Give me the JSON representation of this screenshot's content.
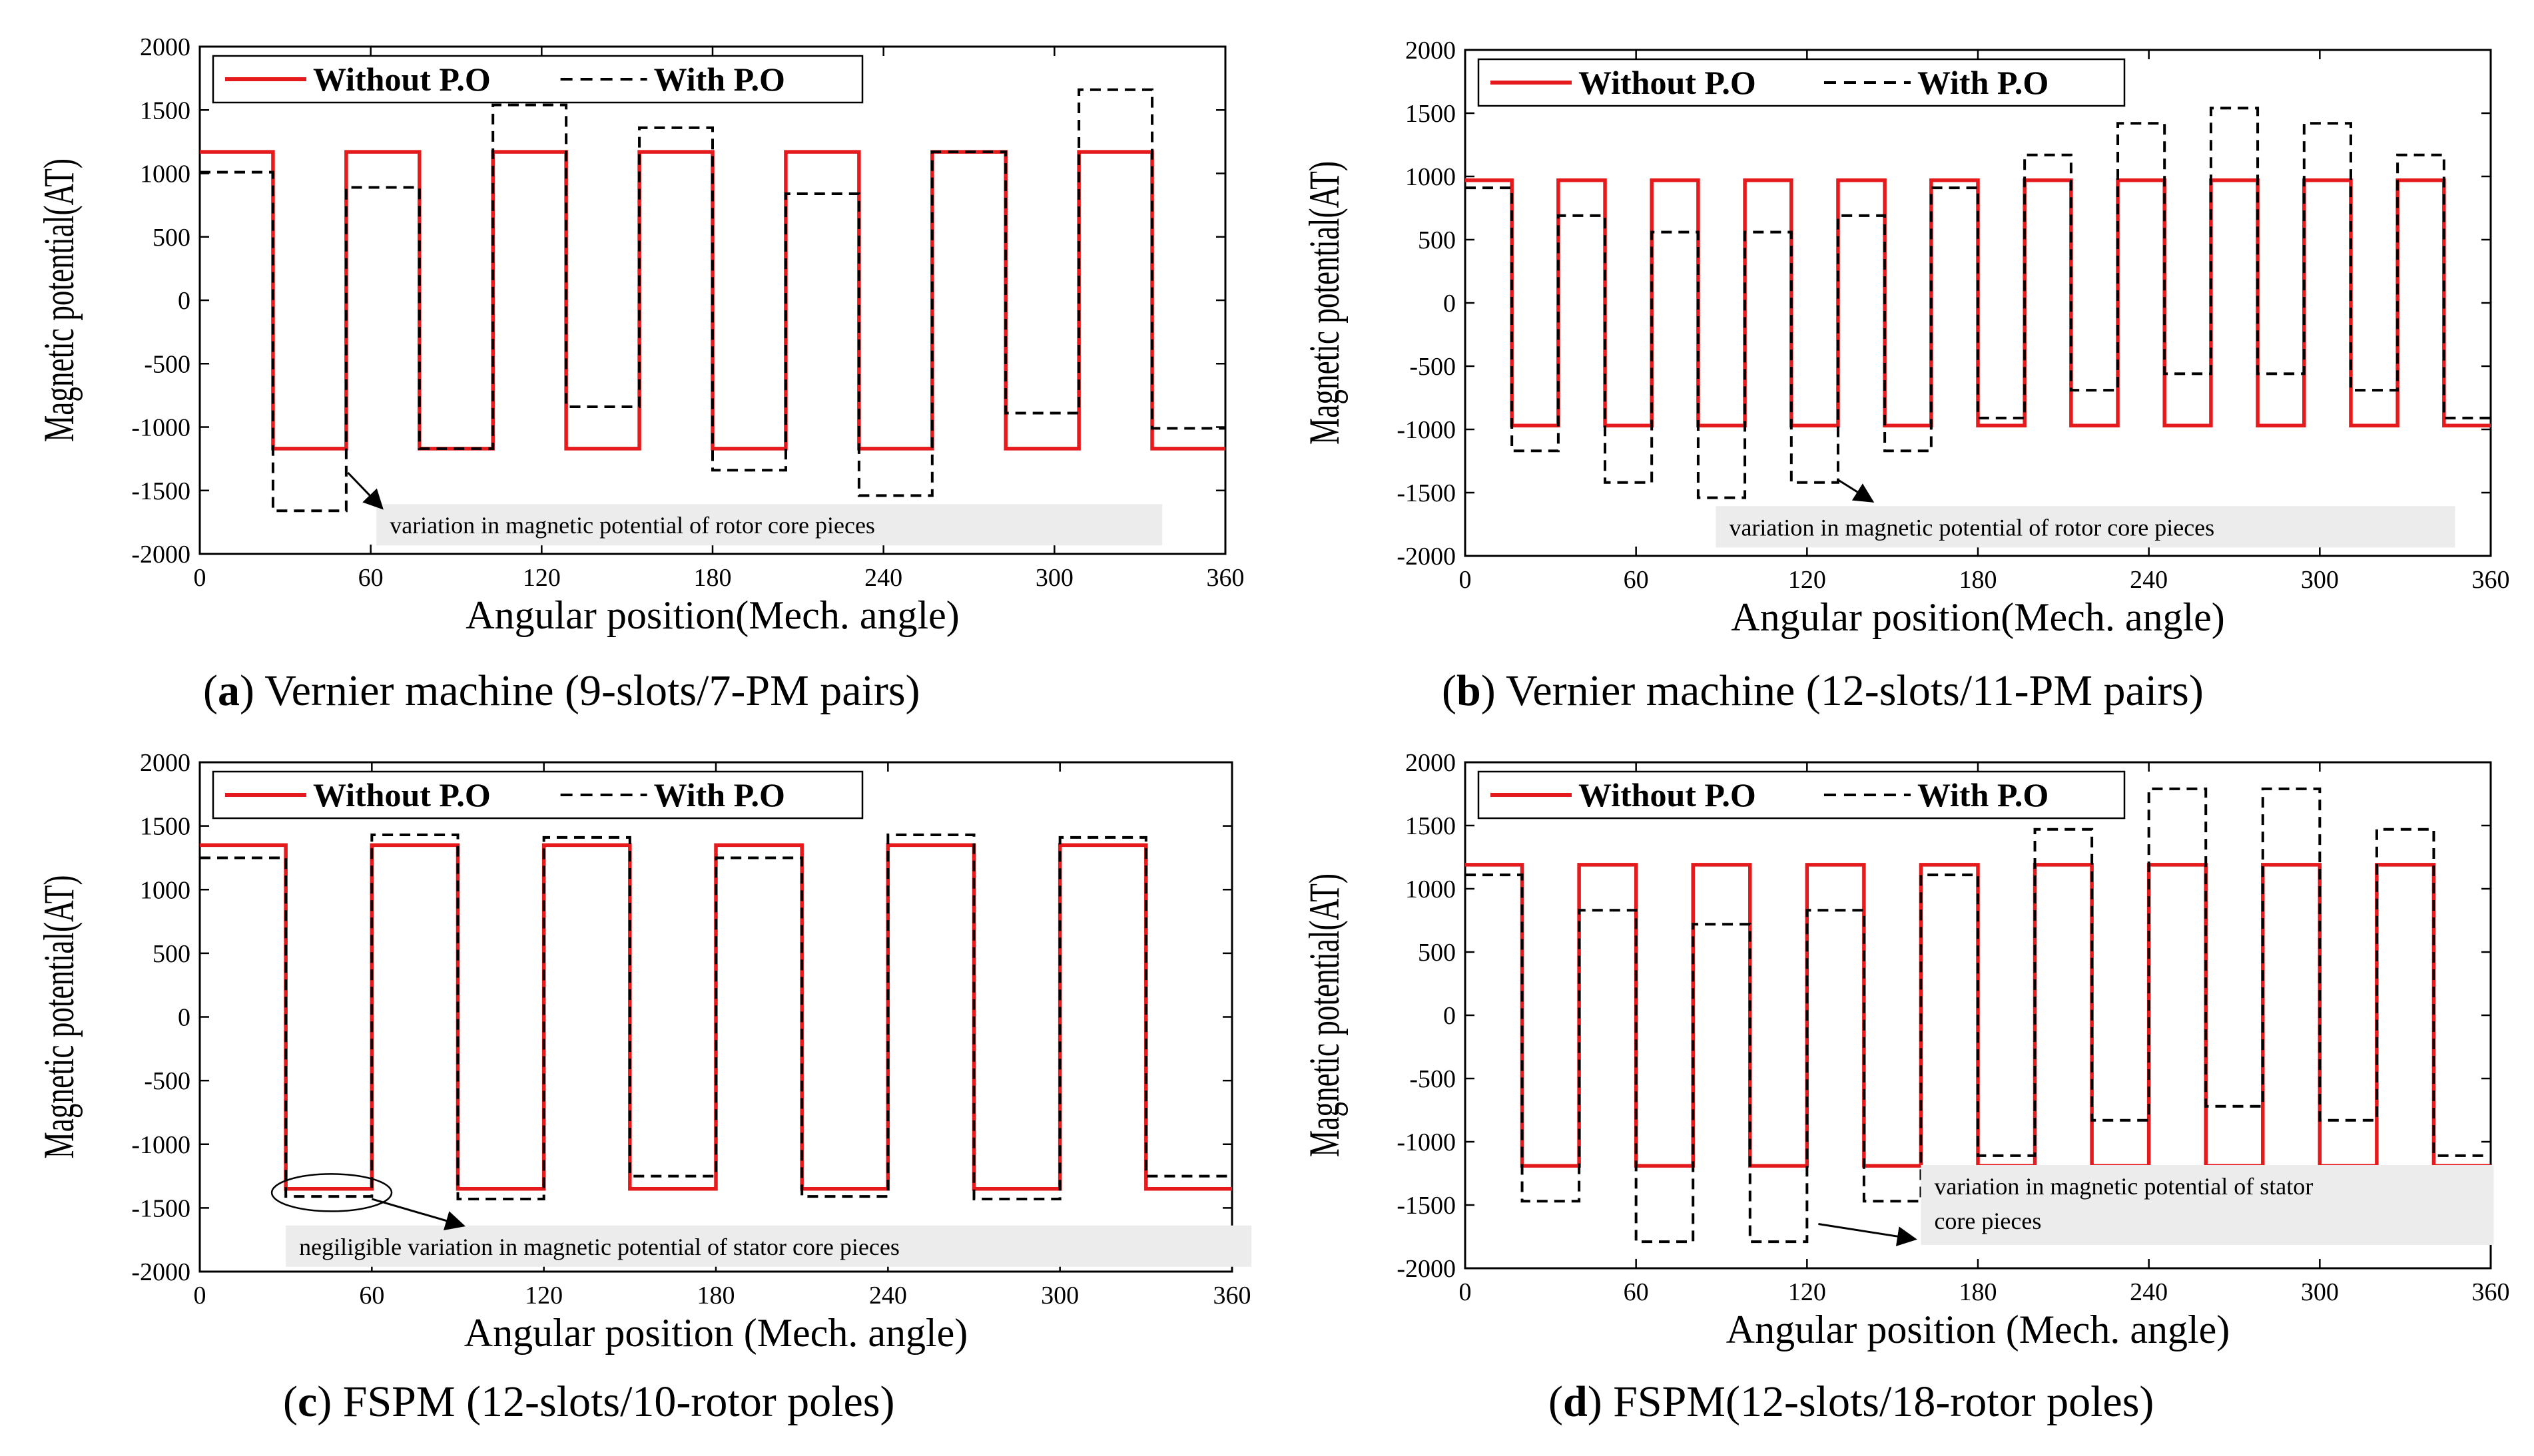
{
  "colors": {
    "without": "#e41a1c",
    "with": "#000000",
    "annotation_bg": "#ececec"
  },
  "chart_data": [
    {
      "id": "a",
      "type": "line",
      "caption_label": "a",
      "caption_text": " Vernier machine (9-slots/7-PM pairs)",
      "xlabel": "Angular position(Mech. angle)",
      "ylabel": "Magnetic potential(AT)",
      "xlim": [
        0,
        360
      ],
      "ylim": [
        -2000,
        2000
      ],
      "xticks": [
        0,
        60,
        120,
        180,
        240,
        300,
        360
      ],
      "yticks": [
        -2000,
        -1500,
        -1000,
        -500,
        0,
        500,
        1000,
        1500,
        2000
      ],
      "legend": {
        "entries": [
          "Without P.O",
          "With P.O"
        ],
        "placement": "top-left"
      },
      "annotation": {
        "lines": [
          "variation in magnetic potential of rotor core pieces"
        ],
        "x": 62,
        "y": -1770,
        "arrow_from": [
          52,
          -1360
        ],
        "arrow_to": [
          64,
          -1640
        ]
      },
      "series": [
        {
          "name": "Without P.O",
          "style": "solid",
          "edges": [
            0,
            25.7,
            51.4,
            77.1,
            102.9,
            128.6,
            154.3,
            180,
            205.7,
            231.4,
            257.1,
            282.9,
            308.6,
            334.3,
            360
          ],
          "values": [
            1170,
            -1170,
            1170,
            -1170,
            1170,
            -1170,
            1170,
            -1170,
            1170,
            -1170,
            1170,
            -1170,
            1170,
            -1170
          ]
        },
        {
          "name": "With P.O",
          "style": "dashed",
          "edges": [
            0,
            25.7,
            51.4,
            77.1,
            102.9,
            128.6,
            154.3,
            180,
            205.7,
            231.4,
            257.1,
            282.9,
            308.6,
            334.3,
            360
          ],
          "values": [
            1010,
            -1660,
            890,
            -1170,
            1540,
            -840,
            1360,
            -1340,
            840,
            -1540,
            1170,
            -890,
            1660,
            -1010
          ]
        }
      ]
    },
    {
      "id": "b",
      "type": "line",
      "caption_label": "b",
      "caption_text": " Vernier machine (12-slots/11-PM pairs)",
      "xlabel": "Angular position(Mech. angle)",
      "ylabel": "Magnetic potential(AT)",
      "xlim": [
        0,
        360
      ],
      "ylim": [
        -2000,
        2000
      ],
      "xticks": [
        0,
        60,
        120,
        180,
        240,
        300,
        360
      ],
      "yticks": [
        -2000,
        -1500,
        -1000,
        -500,
        0,
        500,
        1000,
        1500,
        2000
      ],
      "legend": {
        "entries": [
          "Without P.O",
          "With P.O"
        ],
        "placement": "top-left"
      },
      "annotation": {
        "lines": [
          "variation in magnetic potential of rotor core pieces"
        ],
        "x": 88,
        "y": -1770,
        "arrow_from": [
          131,
          -1400
        ],
        "arrow_to": [
          143,
          -1570
        ]
      },
      "series": [
        {
          "name": "Without P.O",
          "style": "solid",
          "edges": [
            0,
            16.4,
            32.7,
            49.1,
            65.5,
            81.8,
            98.2,
            114.5,
            130.9,
            147.3,
            163.6,
            180,
            196.4,
            212.7,
            229.1,
            245.5,
            261.8,
            278.2,
            294.5,
            310.9,
            327.3,
            343.6,
            360
          ],
          "values": [
            970,
            -970,
            970,
            -970,
            970,
            -970,
            970,
            -970,
            970,
            -970,
            970,
            -970,
            970,
            -970,
            970,
            -970,
            970,
            -970,
            970,
            -970,
            970,
            -970
          ]
        },
        {
          "name": "With P.O",
          "style": "dashed",
          "edges": [
            0,
            16.4,
            32.7,
            49.1,
            65.5,
            81.8,
            98.2,
            114.5,
            130.9,
            147.3,
            163.6,
            180,
            196.4,
            212.7,
            229.1,
            245.5,
            261.8,
            278.2,
            294.5,
            310.9,
            327.3,
            343.6,
            360
          ],
          "values": [
            910,
            -1170,
            690,
            -1420,
            560,
            -1540,
            560,
            -1420,
            690,
            -1170,
            910,
            -910,
            1170,
            -690,
            1420,
            -560,
            1540,
            -560,
            1420,
            -690,
            1170,
            -910
          ]
        }
      ]
    },
    {
      "id": "c",
      "type": "line",
      "caption_label": "c",
      "caption_text": " FSPM (12-slots/10-rotor poles)",
      "xlabel": "Angular position (Mech. angle)",
      "ylabel": "Magnetic potential(AT)",
      "xlim": [
        0,
        360
      ],
      "ylim": [
        -2000,
        2000
      ],
      "xticks": [
        0,
        60,
        120,
        180,
        240,
        300,
        360
      ],
      "yticks": [
        -2000,
        -1500,
        -1000,
        -500,
        0,
        500,
        1000,
        1500,
        2000
      ],
      "legend": {
        "entries": [
          "Without P.O",
          "With P.O"
        ],
        "placement": "top-left"
      },
      "annotation": {
        "lines": [
          "negiligible variation in magnetic potential of stator core pieces"
        ],
        "x": 30,
        "y": -1800,
        "ellipse": [
          46,
          -1380
        ],
        "arrow_from": [
          60,
          -1430
        ],
        "arrow_to": [
          92,
          -1640
        ]
      },
      "series": [
        {
          "name": "Without P.O",
          "style": "solid",
          "edges": [
            0,
            30,
            60,
            90,
            120,
            150,
            180,
            210,
            240,
            270,
            300,
            330,
            360
          ],
          "values": [
            1350,
            -1350,
            1350,
            -1350,
            1350,
            -1350,
            1350,
            -1350,
            1350,
            -1350,
            1350,
            -1350
          ]
        },
        {
          "name": "With P.O",
          "style": "dashed",
          "edges": [
            0,
            30,
            60,
            90,
            120,
            150,
            180,
            210,
            240,
            270,
            300,
            330,
            360
          ],
          "values": [
            1250,
            -1410,
            1430,
            -1430,
            1410,
            -1250,
            1250,
            -1410,
            1430,
            -1430,
            1410,
            -1250
          ]
        }
      ]
    },
    {
      "id": "d",
      "type": "line",
      "caption_label": "d",
      "caption_text": " FSPM(12-slots/18-rotor poles)",
      "xlabel": "Angular position (Mech. angle)",
      "ylabel": "Magnetic potential(AT)",
      "xlim": [
        0,
        360
      ],
      "ylim": [
        -2000,
        2000
      ],
      "xticks": [
        0,
        60,
        120,
        180,
        240,
        300,
        360
      ],
      "yticks": [
        -2000,
        -1500,
        -1000,
        -500,
        0,
        500,
        1000,
        1500,
        2000
      ],
      "legend": {
        "entries": [
          "Without P.O",
          "With P.O"
        ],
        "placement": "top-left"
      },
      "annotation": {
        "lines": [
          "variation in magnetic potential of stator",
          "core pieces"
        ],
        "x": 160,
        "y": -1500,
        "arrow_from": [
          124,
          -1650
        ],
        "arrow_to": [
          158,
          -1770
        ]
      },
      "series": [
        {
          "name": "Without P.O",
          "style": "solid",
          "edges": [
            0,
            20,
            40,
            60,
            80,
            100,
            120,
            140,
            160,
            180,
            200,
            220,
            240,
            260,
            280,
            300,
            320,
            340,
            360
          ],
          "values": [
            1190,
            -1190,
            1190,
            -1190,
            1190,
            -1190,
            1190,
            -1190,
            1190,
            -1190,
            1190,
            -1190,
            1190,
            -1190,
            1190,
            -1190,
            1190,
            -1190
          ]
        },
        {
          "name": "With P.O",
          "style": "dashed",
          "edges": [
            0,
            20,
            40,
            60,
            80,
            100,
            120,
            140,
            160,
            180,
            200,
            220,
            240,
            260,
            280,
            300,
            320,
            340,
            360
          ],
          "values": [
            1110,
            -1470,
            830,
            -1790,
            720,
            -1790,
            830,
            -1470,
            1110,
            -1110,
            1470,
            -830,
            1790,
            -720,
            1790,
            -830,
            1470,
            -1110
          ]
        }
      ]
    }
  ]
}
